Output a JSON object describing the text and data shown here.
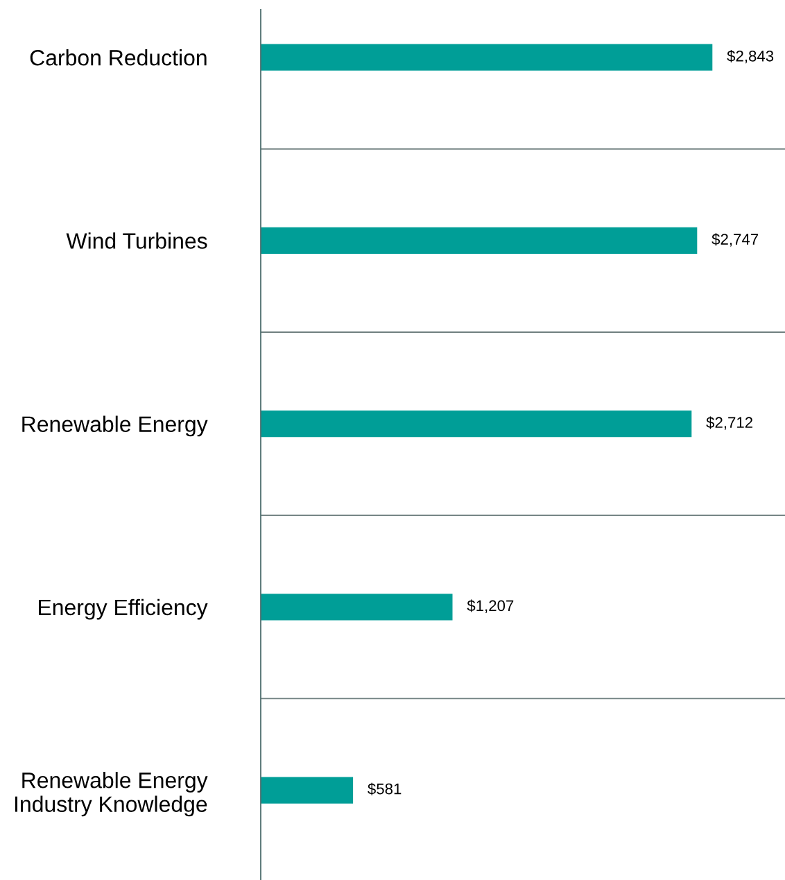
{
  "chart_data": {
    "type": "bar",
    "orientation": "horizontal",
    "categories": [
      "Carbon Reduction",
      "Wind Turbines",
      "Renewable Energy",
      "Energy Efficiency",
      "Renewable Energy\nIndustry Knowledge"
    ],
    "values": [
      2843,
      2747,
      2712,
      1207,
      581
    ],
    "value_labels": [
      "$2,843",
      "$2,747",
      "$2,712",
      "$1,207",
      "$581"
    ],
    "color": "#009e97",
    "xlim": [
      0,
      3300
    ],
    "tick_labels": "y",
    "grid": "y"
  }
}
